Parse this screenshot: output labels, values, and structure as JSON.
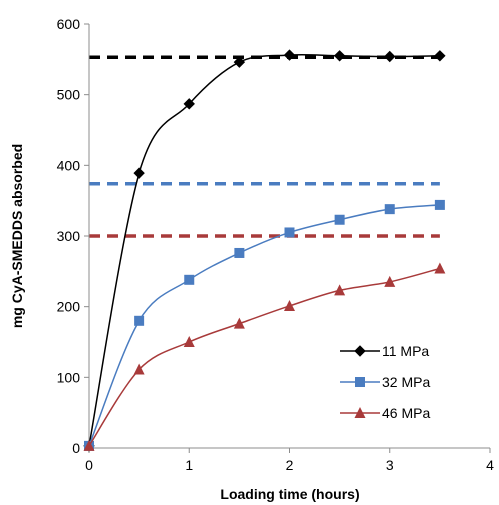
{
  "chart_data": {
    "type": "line",
    "title": "",
    "xlabel": "Loading  time (hours)",
    "ylabel": "mg CyA-SMEDDS absorbed",
    "xlim": [
      0,
      4
    ],
    "ylim": [
      0,
      600
    ],
    "xticks": [
      0,
      1,
      2,
      3,
      4
    ],
    "yticks": [
      0,
      100,
      200,
      300,
      400,
      500,
      600
    ],
    "grid": false,
    "legend_position": "bottom-right",
    "series": [
      {
        "name": "11 MPa",
        "color": "#000000",
        "marker": "diamond",
        "x": [
          0,
          0.5,
          1,
          1.5,
          2,
          2.5,
          3,
          3.5
        ],
        "y": [
          3,
          389,
          487,
          546,
          556,
          555,
          554,
          555
        ],
        "plateau": 553
      },
      {
        "name": "32 MPa",
        "color": "#4a7cc0",
        "marker": "square",
        "x": [
          0,
          0.5,
          1,
          1.5,
          2,
          2.5,
          3,
          3.5
        ],
        "y": [
          3,
          180,
          238,
          276,
          305,
          323,
          338,
          344
        ],
        "plateau": 374
      },
      {
        "name": "46 MPa",
        "color": "#a83a3a",
        "marker": "triangle",
        "x": [
          0,
          0.5,
          1,
          1.5,
          2,
          2.5,
          3,
          3.5
        ],
        "y": [
          3,
          111,
          150,
          176,
          201,
          223,
          235,
          254
        ],
        "plateau": 300
      }
    ]
  }
}
